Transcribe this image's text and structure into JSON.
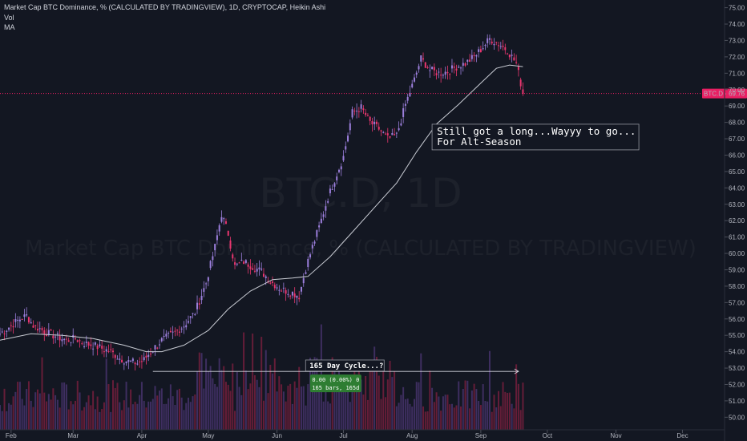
{
  "chart_data": {
    "type": "candlestick",
    "legend": [
      "Market Cap BTC Dominance, % (CALCULATED BY TRADINGVIEW), 1D, CRYPTOCAP, Heikin Ashi",
      "Vol",
      "MA"
    ],
    "watermark": {
      "ticker": "BTC.D, 1D",
      "name": "Market Cap BTC Dominance, % (CALCULATED BY TRADINGVIEW)"
    },
    "y_axis": {
      "ticks": [
        "75.00",
        "74.00",
        "73.00",
        "72.00",
        "71.00",
        "70.00",
        "69.00",
        "68.00",
        "67.00",
        "66.00",
        "65.00",
        "64.00",
        "63.00",
        "62.00",
        "61.00",
        "60.00",
        "59.00",
        "58.00",
        "57.00",
        "56.00",
        "55.00",
        "54.00",
        "53.00",
        "52.00",
        "51.00",
        "50.00"
      ],
      "range": [
        49.9,
        75.4
      ]
    },
    "x_axis": {
      "ticks": [
        "Feb",
        "Mar",
        "Apr",
        "May",
        "Jun",
        "Jul",
        "Aug",
        "Sep",
        "Oct",
        "Nov",
        "Dec"
      ],
      "range": [
        "2021-01-27",
        "2021-12-20"
      ]
    },
    "series_close": [
      [
        "2021-01-27",
        55.1
      ],
      [
        "2021-02-01",
        55.6
      ],
      [
        "2021-02-05",
        56.0
      ],
      [
        "2021-02-08",
        56.2
      ],
      [
        "2021-02-11",
        55.6
      ],
      [
        "2021-02-14",
        55.4
      ],
      [
        "2021-02-18",
        55.1
      ],
      [
        "2021-02-22",
        54.9
      ],
      [
        "2021-02-26",
        54.7
      ],
      [
        "2021-03-02",
        54.8
      ],
      [
        "2021-03-06",
        54.5
      ],
      [
        "2021-03-10",
        54.4
      ],
      [
        "2021-03-14",
        54.2
      ],
      [
        "2021-03-18",
        54.0
      ],
      [
        "2021-03-22",
        53.6
      ],
      [
        "2021-03-26",
        53.4
      ],
      [
        "2021-03-30",
        53.3
      ],
      [
        "2021-04-02",
        53.5
      ],
      [
        "2021-04-05",
        54.0
      ],
      [
        "2021-04-10",
        54.7
      ],
      [
        "2021-04-15",
        55.1
      ],
      [
        "2021-04-20",
        55.6
      ],
      [
        "2021-04-25",
        56.4
      ],
      [
        "2021-04-30",
        58.2
      ],
      [
        "2021-05-04",
        60.4
      ],
      [
        "2021-05-07",
        62.4
      ],
      [
        "2021-05-10",
        61.2
      ],
      [
        "2021-05-13",
        59.2
      ],
      [
        "2021-05-17",
        59.5
      ],
      [
        "2021-05-21",
        59.2
      ],
      [
        "2021-05-25",
        58.9
      ],
      [
        "2021-05-29",
        58.3
      ],
      [
        "2021-06-03",
        57.8
      ],
      [
        "2021-06-08",
        57.6
      ],
      [
        "2021-06-11",
        57.4
      ],
      [
        "2021-06-14",
        59.1
      ],
      [
        "2021-06-17",
        60.4
      ],
      [
        "2021-06-20",
        61.6
      ],
      [
        "2021-06-24",
        63.4
      ],
      [
        "2021-06-27",
        64.5
      ],
      [
        "2021-07-01",
        65.9
      ],
      [
        "2021-07-05",
        68.6
      ],
      [
        "2021-07-09",
        68.9
      ],
      [
        "2021-07-13",
        68.0
      ],
      [
        "2021-07-17",
        67.6
      ],
      [
        "2021-07-21",
        67.0
      ],
      [
        "2021-07-25",
        67.2
      ],
      [
        "2021-07-29",
        69.1
      ],
      [
        "2021-08-02",
        70.6
      ],
      [
        "2021-08-05",
        71.9
      ],
      [
        "2021-08-09",
        71.2
      ],
      [
        "2021-08-13",
        71.0
      ],
      [
        "2021-08-17",
        71.1
      ],
      [
        "2021-08-21",
        71.4
      ],
      [
        "2021-08-25",
        71.6
      ],
      [
        "2021-08-29",
        72.0
      ],
      [
        "2021-09-02",
        72.6
      ],
      [
        "2021-09-05",
        73.1
      ],
      [
        "2021-09-09",
        72.8
      ],
      [
        "2021-09-13",
        72.4
      ],
      [
        "2021-09-17",
        71.6
      ],
      [
        "2021-09-20",
        69.8
      ]
    ],
    "moving_average": [
      [
        "2021-01-27",
        54.7
      ],
      [
        "2021-02-10",
        55.1
      ],
      [
        "2021-02-24",
        55.0
      ],
      [
        "2021-03-10",
        54.8
      ],
      [
        "2021-03-24",
        54.4
      ],
      [
        "2021-04-03",
        54.0
      ],
      [
        "2021-04-10",
        54.0
      ],
      [
        "2021-04-20",
        54.4
      ],
      [
        "2021-05-01",
        55.3
      ],
      [
        "2021-05-10",
        56.6
      ],
      [
        "2021-05-20",
        57.7
      ],
      [
        "2021-05-30",
        58.4
      ],
      [
        "2021-06-08",
        58.5
      ],
      [
        "2021-06-15",
        58.6
      ],
      [
        "2021-06-25",
        59.8
      ],
      [
        "2021-07-05",
        61.3
      ],
      [
        "2021-07-15",
        62.8
      ],
      [
        "2021-07-25",
        64.3
      ],
      [
        "2021-08-03",
        66.2
      ],
      [
        "2021-08-12",
        67.9
      ],
      [
        "2021-08-22",
        69.1
      ],
      [
        "2021-09-01",
        70.4
      ],
      [
        "2021-09-08",
        71.3
      ],
      [
        "2021-09-14",
        71.5
      ],
      [
        "2021-09-20",
        71.4
      ]
    ],
    "price_line": {
      "value": 69.76,
      "label": "BTC.D · 69.76",
      "level_label": "69.90"
    },
    "annotations": [
      {
        "text_lines": [
          "Still got a long...Wayyy to go...",
          "For Alt-Season"
        ],
        "anchor_date": "2021-08-10",
        "anchor_value": 67.3
      },
      {
        "text": "165 Day Cycle...?",
        "date": "2021-06-15",
        "value": 53.2
      },
      {
        "measure_lines": [
          "0.00 (0.00%) 0",
          "165 bars, 165d"
        ],
        "from": "2021-04-06",
        "to": "2021-09-18",
        "value": 52.8
      }
    ],
    "colors": {
      "background": "#131722",
      "up": "#9c7fdc",
      "down": "#e9366f",
      "ma": "#c9ccd4",
      "price_line": "#e91e63",
      "measure": "#2e7d32"
    }
  }
}
